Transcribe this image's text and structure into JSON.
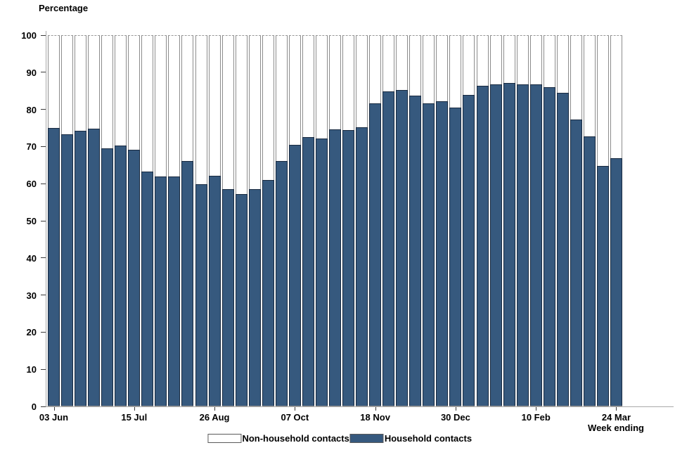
{
  "y_axis_title": "Percentage",
  "x_axis_title": "Week ending",
  "legend": [
    {
      "label": "Non-household contacts",
      "color": "#ffffff"
    },
    {
      "label": "Household contacts",
      "color": "#36597E"
    }
  ],
  "chart_data": {
    "type": "bar",
    "stacked": true,
    "percent_stacked": true,
    "n_bars": 43,
    "x_tick_labels": [
      "03 Jun",
      "15 Jul",
      "26 Aug",
      "07 Oct",
      "18 Nov",
      "30 Dec",
      "10 Feb",
      "24 Mar"
    ],
    "x_tick_indices": [
      0,
      6,
      12,
      18,
      24,
      30,
      36,
      42
    ],
    "series": [
      {
        "name": "Household contacts",
        "color": "#36597E",
        "values": [
          74.8,
          73.1,
          74.0,
          74.7,
          69.4,
          70.1,
          68.9,
          63.1,
          61.7,
          61.7,
          66.0,
          59.6,
          62.0,
          58.3,
          57.1,
          58.3,
          60.8,
          65.9,
          70.3,
          72.3,
          71.9,
          74.5,
          74.2,
          75.0,
          81.5,
          84.7,
          85.0,
          83.5,
          81.4,
          82.0,
          80.3,
          83.8,
          86.2,
          86.6,
          86.9,
          86.6,
          86.6,
          85.8,
          84.3,
          77.1,
          72.5,
          64.6,
          66.7
        ]
      },
      {
        "name": "Non-household contacts",
        "color": "#ffffff",
        "values": [
          25.2,
          26.9,
          26.0,
          25.3,
          30.6,
          29.9,
          31.1,
          36.9,
          38.3,
          38.3,
          34.0,
          40.4,
          38.0,
          41.7,
          42.9,
          41.7,
          39.2,
          34.1,
          29.7,
          27.7,
          28.1,
          25.5,
          25.8,
          25.0,
          18.5,
          15.3,
          15.0,
          16.5,
          18.6,
          18.0,
          19.7,
          16.2,
          13.8,
          13.4,
          13.1,
          13.4,
          13.4,
          14.2,
          15.7,
          22.9,
          27.5,
          35.4,
          33.3
        ]
      }
    ],
    "title": "Percentage",
    "xlabel": "Week ending",
    "ylabel": "Percentage",
    "ylim": [
      0,
      100
    ],
    "yticks": [
      0,
      10,
      20,
      30,
      40,
      50,
      60,
      70,
      80,
      90,
      100
    ],
    "legend_position": "bottom",
    "grid": false
  }
}
